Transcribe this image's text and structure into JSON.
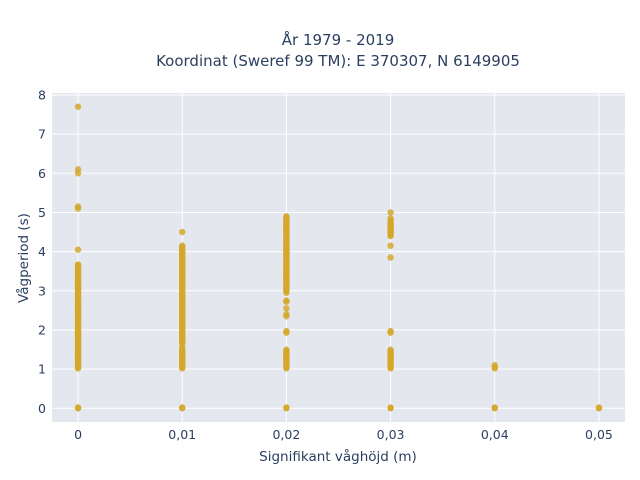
{
  "chart_data": {
    "type": "scatter",
    "title": "År 1979 - 2019",
    "subtitle": "Koordinat (Sweref 99 TM): E 370307, N 6149905",
    "xlabel": "Signifikant våghöjd (m)",
    "ylabel": "Vågperiod (s)",
    "xlim": [
      -0.0025,
      0.0525
    ],
    "ylim": [
      -0.35,
      8.05
    ],
    "x_ticks": [
      0,
      0.01,
      0.02,
      0.03,
      0.04,
      0.05
    ],
    "x_tick_labels": [
      "0",
      "0,01",
      "0,02",
      "0,03",
      "0,04",
      "0,05"
    ],
    "y_ticks": [
      0,
      1,
      2,
      3,
      4,
      5,
      6,
      7,
      8
    ],
    "y_tick_labels": [
      "0",
      "1",
      "2",
      "3",
      "4",
      "5",
      "6",
      "7",
      "8"
    ],
    "grid": true,
    "legend": "none",
    "marker_color": "#d4a82a",
    "plot_bg": "#e5e7ef",
    "series": [
      {
        "x_groups": [
          {
            "x": 0,
            "y_points": [
              7.7,
              6.1,
              6.0,
              5.15,
              5.1,
              4.05,
              0,
              0.02
            ],
            "y_ranges": [
              [
                1.02,
                3.67
              ]
            ]
          },
          {
            "x": 0.01,
            "y_points": [
              4.5,
              0,
              0.02
            ],
            "y_ranges": [
              [
                1.02,
                1.55
              ],
              [
                1.65,
                4.15
              ]
            ]
          },
          {
            "x": 0.02,
            "y_points": [
              4.9,
              4.88,
              2.95,
              2.75,
              2.72,
              2.55,
              2.4,
              2.35,
              1.97,
              1.93,
              0,
              0.02
            ],
            "y_ranges": [
              [
                1.02,
                1.5
              ],
              [
                3.0,
                4.85
              ]
            ]
          },
          {
            "x": 0.03,
            "y_points": [
              5.0,
              4.85,
              4.8,
              4.15,
              3.85,
              1.97,
              1.93,
              0,
              0.02
            ],
            "y_ranges": [
              [
                1.02,
                1.5
              ],
              [
                4.4,
                4.75
              ]
            ]
          },
          {
            "x": 0.04,
            "y_points": [
              1.1,
              1.05,
              1.02,
              0,
              0.02
            ],
            "y_ranges": []
          },
          {
            "x": 0.05,
            "y_points": [
              0,
              0.02
            ],
            "y_ranges": []
          }
        ]
      }
    ]
  }
}
